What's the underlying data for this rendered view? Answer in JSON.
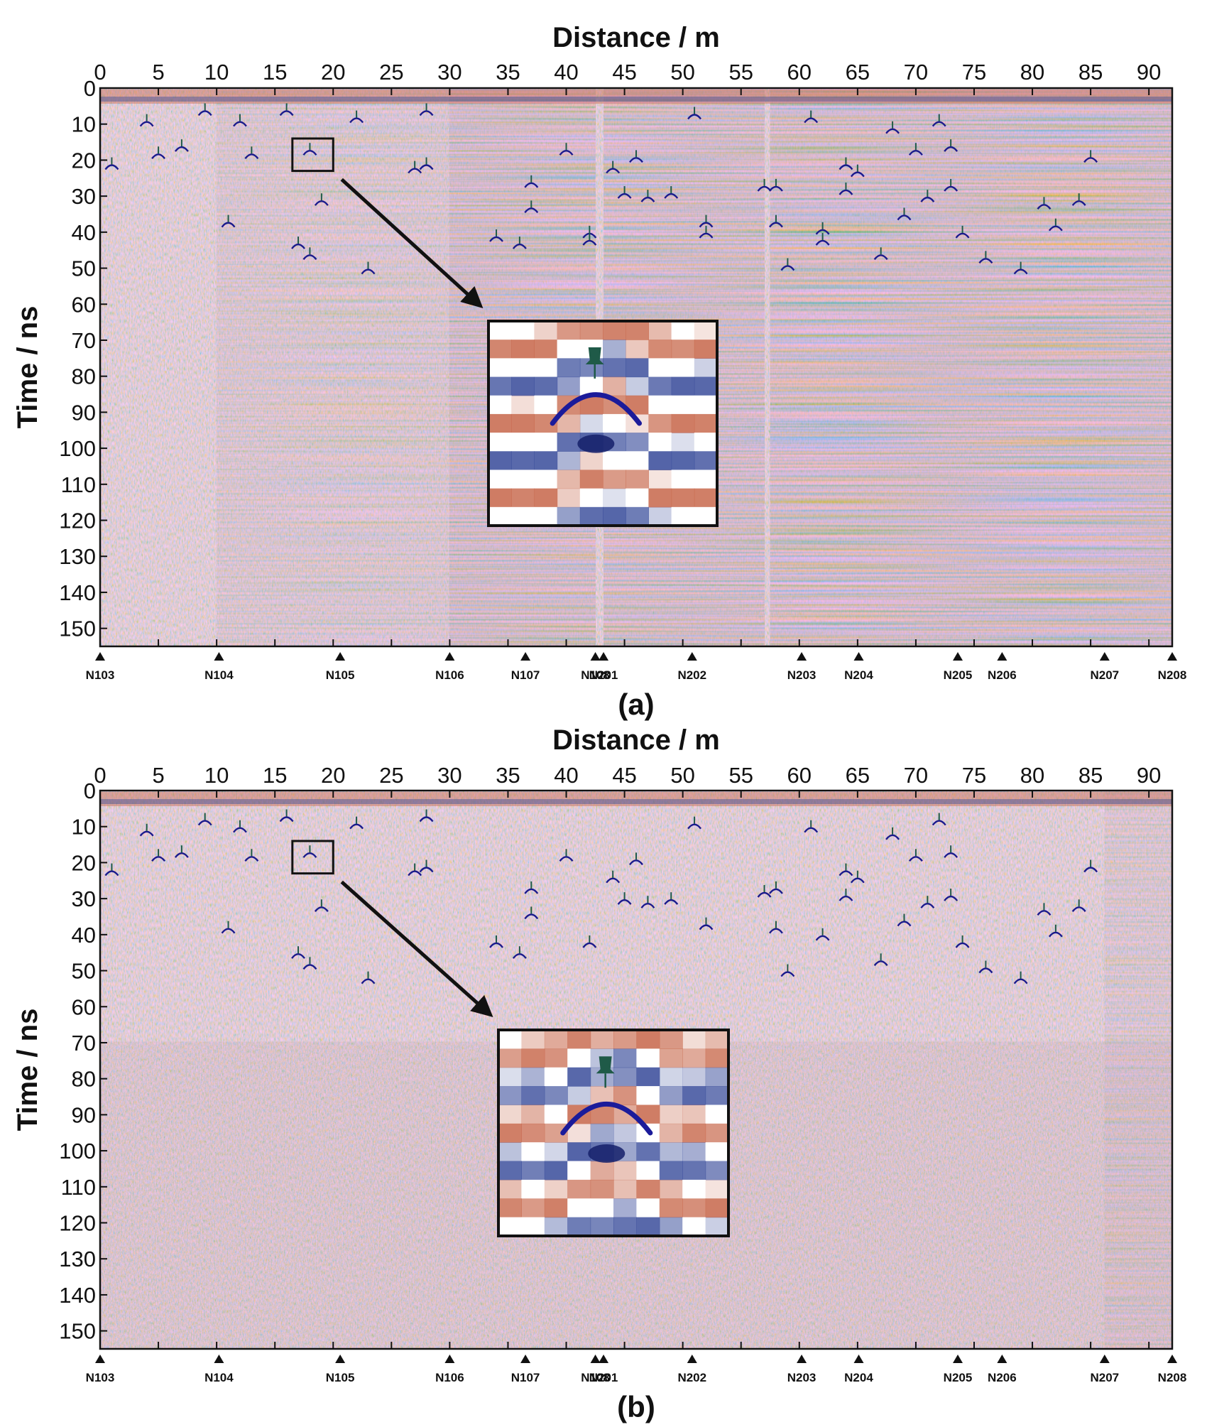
{
  "figure": {
    "panels": [
      {
        "label": "(a)"
      },
      {
        "label": "(b)"
      }
    ]
  },
  "colors": {
    "positive": "#c86a4e",
    "negative": "#3c4f9c",
    "hyperbola": "#1a1a8c",
    "marker": "#1f5a48",
    "frame": "#111111",
    "text": "#111111"
  },
  "chart_data": [
    {
      "type": "heatmap",
      "panel": "(a)",
      "xlabel": "Distance / m",
      "ylabel": "Time / ns",
      "xlim": [
        0,
        92
      ],
      "ylim": [
        155,
        0
      ],
      "xticks": [
        0,
        5,
        10,
        15,
        20,
        25,
        30,
        35,
        40,
        45,
        50,
        55,
        60,
        65,
        70,
        75,
        80,
        85,
        90
      ],
      "yticks": [
        0,
        10,
        20,
        30,
        40,
        50,
        60,
        70,
        80,
        90,
        100,
        110,
        120,
        130,
        140,
        150
      ],
      "stations": [
        {
          "name": "N103",
          "x": 0
        },
        {
          "name": "N104",
          "x": 10.2
        },
        {
          "name": "N105",
          "x": 20.6
        },
        {
          "name": "N106",
          "x": 30
        },
        {
          "name": "N107",
          "x": 36.5
        },
        {
          "name": "N108",
          "x": 42.5
        },
        {
          "name": "N201",
          "x": 43.2
        },
        {
          "name": "N202",
          "x": 50.8
        },
        {
          "name": "N203",
          "x": 60.2
        },
        {
          "name": "N204",
          "x": 65.1
        },
        {
          "name": "N205",
          "x": 73.6
        },
        {
          "name": "N206",
          "x": 77.4
        },
        {
          "name": "N207",
          "x": 86.2
        },
        {
          "name": "N208",
          "x": 92
        }
      ],
      "zoom_box": {
        "x": [
          16.5,
          20
        ],
        "y": [
          14,
          23
        ]
      },
      "zoom_ns_range": [
        70,
        120
      ],
      "detections": [
        [
          1,
          21
        ],
        [
          4,
          9
        ],
        [
          5,
          18
        ],
        [
          7,
          16
        ],
        [
          9,
          6
        ],
        [
          12,
          9
        ],
        [
          13,
          18
        ],
        [
          16,
          6
        ],
        [
          18,
          17
        ],
        [
          19,
          31
        ],
        [
          11,
          37
        ],
        [
          17,
          43
        ],
        [
          18,
          46
        ],
        [
          23,
          50
        ],
        [
          22,
          8
        ],
        [
          27,
          22
        ],
        [
          28,
          21
        ],
        [
          28,
          6
        ],
        [
          37,
          26
        ],
        [
          37,
          33
        ],
        [
          40,
          17
        ],
        [
          42,
          40
        ],
        [
          44,
          22
        ],
        [
          45,
          29
        ],
        [
          46,
          19
        ],
        [
          47,
          30
        ],
        [
          49,
          29
        ],
        [
          51,
          7
        ],
        [
          52,
          37
        ],
        [
          57,
          27
        ],
        [
          58,
          27
        ],
        [
          58,
          37
        ],
        [
          59,
          49
        ],
        [
          61,
          8
        ],
        [
          62,
          39
        ],
        [
          64,
          21
        ],
        [
          64,
          28
        ],
        [
          65,
          23
        ],
        [
          67,
          46
        ],
        [
          68,
          11
        ],
        [
          69,
          35
        ],
        [
          70,
          17
        ],
        [
          71,
          30
        ],
        [
          72,
          9
        ],
        [
          73,
          16
        ],
        [
          73,
          27
        ],
        [
          74,
          40
        ],
        [
          76,
          47
        ],
        [
          79,
          50
        ],
        [
          81,
          32
        ],
        [
          82,
          38
        ],
        [
          84,
          31
        ],
        [
          85,
          19
        ],
        [
          42,
          42
        ],
        [
          34,
          41
        ],
        [
          36,
          43
        ],
        [
          52,
          40
        ],
        [
          62,
          42
        ]
      ]
    },
    {
      "type": "heatmap",
      "panel": "(b)",
      "xlabel": "Distance / m",
      "ylabel": "Time / ns",
      "xlim": [
        0,
        92
      ],
      "ylim": [
        155,
        0
      ],
      "xticks": [
        0,
        5,
        10,
        15,
        20,
        25,
        30,
        35,
        40,
        45,
        50,
        55,
        60,
        65,
        70,
        75,
        80,
        85,
        90
      ],
      "yticks": [
        0,
        10,
        20,
        30,
        40,
        50,
        60,
        70,
        80,
        90,
        100,
        110,
        120,
        130,
        140,
        150
      ],
      "stations": [
        {
          "name": "N103",
          "x": 0
        },
        {
          "name": "N104",
          "x": 10.2
        },
        {
          "name": "N105",
          "x": 20.6
        },
        {
          "name": "N106",
          "x": 30
        },
        {
          "name": "N107",
          "x": 36.5
        },
        {
          "name": "N108",
          "x": 42.5
        },
        {
          "name": "N201",
          "x": 43.2
        },
        {
          "name": "N202",
          "x": 50.8
        },
        {
          "name": "N203",
          "x": 60.2
        },
        {
          "name": "N204",
          "x": 65.1
        },
        {
          "name": "N205",
          "x": 73.6
        },
        {
          "name": "N206",
          "x": 77.4
        },
        {
          "name": "N207",
          "x": 86.2
        },
        {
          "name": "N208",
          "x": 92
        }
      ],
      "zoom_box": {
        "x": [
          16.5,
          20
        ],
        "y": [
          14,
          23
        ]
      },
      "zoom_ns_range": [
        70,
        120
      ],
      "detections": [
        [
          1,
          22
        ],
        [
          4,
          11
        ],
        [
          5,
          18
        ],
        [
          7,
          17
        ],
        [
          9,
          8
        ],
        [
          12,
          10
        ],
        [
          13,
          18
        ],
        [
          16,
          7
        ],
        [
          18,
          17
        ],
        [
          19,
          32
        ],
        [
          11,
          38
        ],
        [
          17,
          45
        ],
        [
          18,
          48
        ],
        [
          23,
          52
        ],
        [
          22,
          9
        ],
        [
          27,
          22
        ],
        [
          28,
          21
        ],
        [
          28,
          7
        ],
        [
          37,
          27
        ],
        [
          37,
          34
        ],
        [
          40,
          18
        ],
        [
          42,
          42
        ],
        [
          44,
          24
        ],
        [
          45,
          30
        ],
        [
          46,
          19
        ],
        [
          47,
          31
        ],
        [
          49,
          30
        ],
        [
          51,
          9
        ],
        [
          52,
          37
        ],
        [
          57,
          28
        ],
        [
          58,
          27
        ],
        [
          58,
          38
        ],
        [
          59,
          50
        ],
        [
          61,
          10
        ],
        [
          62,
          40
        ],
        [
          64,
          22
        ],
        [
          64,
          29
        ],
        [
          65,
          24
        ],
        [
          67,
          47
        ],
        [
          68,
          12
        ],
        [
          69,
          36
        ],
        [
          70,
          18
        ],
        [
          71,
          31
        ],
        [
          72,
          8
        ],
        [
          73,
          17
        ],
        [
          73,
          29
        ],
        [
          74,
          42
        ],
        [
          76,
          49
        ],
        [
          79,
          52
        ],
        [
          81,
          33
        ],
        [
          82,
          39
        ],
        [
          84,
          32
        ],
        [
          85,
          21
        ],
        [
          34,
          42
        ],
        [
          36,
          45
        ]
      ]
    }
  ]
}
